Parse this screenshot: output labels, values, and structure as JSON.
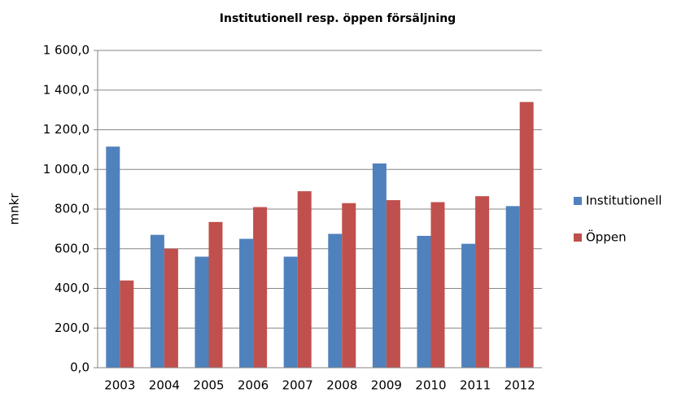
{
  "chart_data": {
    "type": "bar",
    "title": "Institutionell resp. öppen försäljning",
    "y_label": "mnkr",
    "categories": [
      "2003",
      "2004",
      "2005",
      "2006",
      "2007",
      "2008",
      "2009",
      "2010",
      "2011",
      "2012"
    ],
    "series": [
      {
        "name": "Institutionell",
        "color": "#4f81bd",
        "values": [
          1115,
          670,
          560,
          650,
          560,
          675,
          1030,
          665,
          625,
          815
        ]
      },
      {
        "name": "Öppen",
        "color": "#c0504d",
        "values": [
          440,
          600,
          735,
          810,
          890,
          830,
          845,
          835,
          865,
          1340
        ]
      }
    ],
    "ylim": [
      0,
      1600
    ],
    "yticks": [
      {
        "value": 0,
        "label": "0,0"
      },
      {
        "value": 200,
        "label": "200,0"
      },
      {
        "value": 400,
        "label": "400,0"
      },
      {
        "value": 600,
        "label": "600,0"
      },
      {
        "value": 800,
        "label": "800,0"
      },
      {
        "value": 1000,
        "label": "1 000,0"
      },
      {
        "value": 1200,
        "label": "1 200,0"
      },
      {
        "value": 1400,
        "label": "1 400,0"
      },
      {
        "value": 1600,
        "label": "1 600,0"
      }
    ],
    "grid": true,
    "legend": "right"
  }
}
